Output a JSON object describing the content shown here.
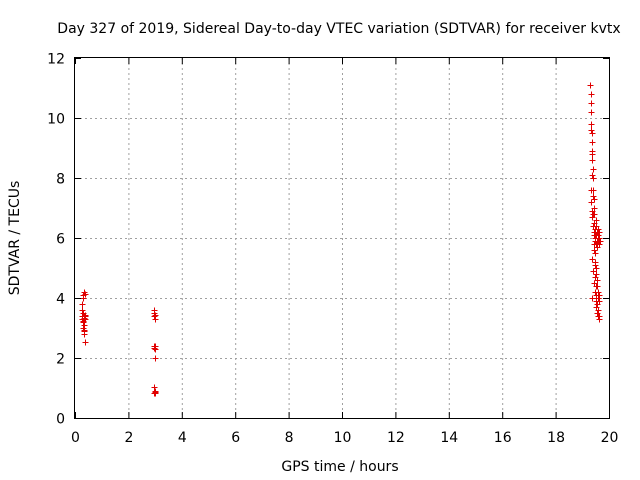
{
  "chart_data": {
    "type": "scatter",
    "title": "Day 327 of 2019, Sidereal Day-to-day VTEC variation (SDTVAR) for receiver kvtx",
    "xlabel": "GPS time / hours",
    "ylabel": "SDTVAR / TECUs",
    "xlim": [
      0,
      20
    ],
    "ylim": [
      0,
      12
    ],
    "xticks": [
      "0",
      "2",
      "4",
      "6",
      "8",
      "10",
      "12",
      "14",
      "16",
      "18",
      "20"
    ],
    "yticks": [
      "0",
      "2",
      "4",
      "6",
      "8",
      "10",
      "12"
    ],
    "grid": true,
    "marker": "+",
    "color": "#e00000",
    "series": [
      {
        "x": [
          0.25,
          0.27,
          0.28,
          0.29,
          0.3,
          0.3,
          0.31,
          0.31,
          0.32,
          0.33,
          0.33,
          0.34,
          0.34,
          0.35,
          0.35,
          0.36,
          0.36,
          0.37,
          0.37,
          0.38,
          0.39,
          0.28,
          0.32,
          0.35,
          0.3,
          0.33,
          2.95,
          2.96,
          2.97,
          2.98,
          2.99,
          3.0,
          2.96,
          2.98,
          3.0,
          2.97,
          2.99,
          2.96,
          2.98,
          3.0,
          2.97,
          2.99,
          19.3,
          19.31,
          19.32,
          19.33,
          19.34,
          19.35,
          19.36,
          19.37,
          19.38,
          19.39,
          19.4,
          19.41,
          19.42,
          19.43,
          19.44,
          19.45,
          19.46,
          19.47,
          19.48,
          19.49,
          19.5,
          19.51,
          19.52,
          19.53,
          19.54,
          19.55,
          19.56,
          19.57,
          19.58,
          19.59,
          19.6,
          19.61,
          19.62,
          19.63,
          19.64,
          19.65,
          19.32,
          19.34,
          19.36,
          19.38,
          19.4,
          19.42,
          19.44,
          19.46,
          19.48,
          19.5,
          19.52,
          19.54,
          19.56,
          19.58,
          19.6,
          19.62,
          19.64,
          19.33,
          19.35,
          19.37,
          19.39,
          19.41,
          19.43,
          19.45,
          19.47,
          19.49,
          19.51,
          19.53,
          19.55,
          19.57,
          19.59,
          19.61,
          19.63,
          19.35,
          19.38,
          19.41,
          19.44,
          19.47,
          19.5,
          19.53,
          19.56,
          19.59,
          19.62
        ],
        "y": [
          3.8,
          3.4,
          3.3,
          3.5,
          3.2,
          4.1,
          4.0,
          3.0,
          2.9,
          4.2,
          3.35,
          3.3,
          2.8,
          3.4,
          2.95,
          3.3,
          4.15,
          3.4,
          2.55,
          3.3,
          3.45,
          3.6,
          3.1,
          2.9,
          3.25,
          3.35,
          3.6,
          3.4,
          3.5,
          3.3,
          2.4,
          2.3,
          2.35,
          2.0,
          2.3,
          1.05,
          0.9,
          0.85,
          0.88,
          0.85,
          2.4,
          3.45,
          11.1,
          10.8,
          10.5,
          10.2,
          9.8,
          9.5,
          9.2,
          8.9,
          8.6,
          8.3,
          8.0,
          7.6,
          7.3,
          7.0,
          6.8,
          6.5,
          6.3,
          6.2,
          6.0,
          5.9,
          5.8,
          6.1,
          6.4,
          6.6,
          6.2,
          5.9,
          5.7,
          6.0,
          6.3,
          6.1,
          5.9,
          6.0,
          6.2,
          5.8,
          6.0,
          5.9,
          7.6,
          7.2,
          6.9,
          6.7,
          6.4,
          6.1,
          5.8,
          5.5,
          5.2,
          5.0,
          4.8,
          4.6,
          4.4,
          4.2,
          4.0,
          4.1,
          3.9,
          9.6,
          8.8,
          8.1,
          7.4,
          6.8,
          6.2,
          5.6,
          5.1,
          4.7,
          4.4,
          4.1,
          3.8,
          3.6,
          3.4,
          3.3,
          3.3,
          4.0,
          5.3,
          4.9,
          4.5,
          4.2,
          3.9,
          3.7,
          3.5,
          3.6,
          3.4
        ]
      }
    ]
  }
}
